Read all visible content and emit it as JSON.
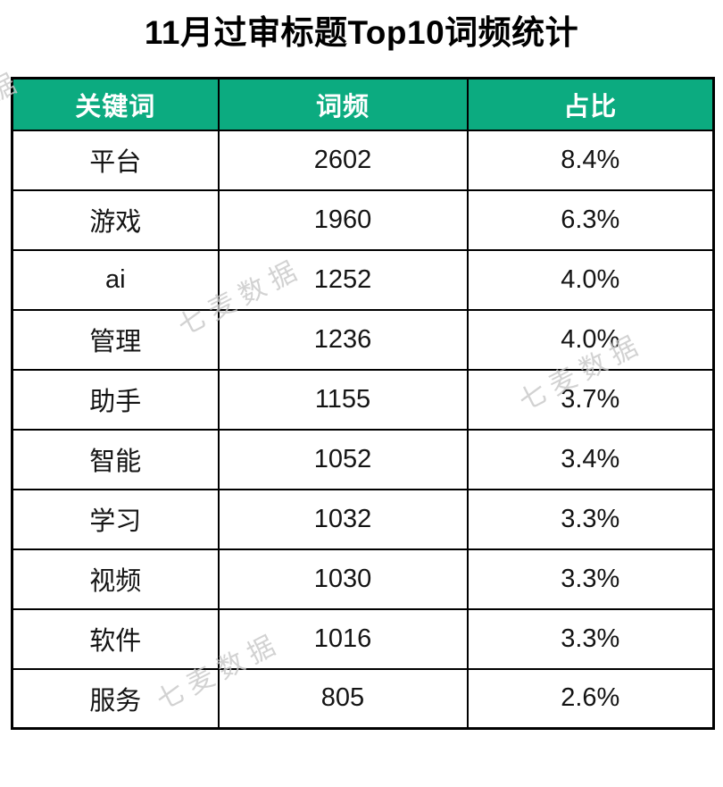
{
  "page_title": "11月过审标题Top10词频统计",
  "watermark": {
    "text": "七麦数据",
    "color": "#c8c8c8"
  },
  "colors": {
    "header_bg": "#0cab80",
    "header_text": "#ffffff",
    "border": "#000000",
    "cell_text": "#141414"
  },
  "chart_data": {
    "type": "table",
    "title": "11月过审标题Top10词频统计",
    "columns": [
      "关键词",
      "词频",
      "占比"
    ],
    "rows": [
      [
        "平台",
        2602,
        "8.4%"
      ],
      [
        "游戏",
        1960,
        "6.3%"
      ],
      [
        "ai",
        1252,
        "4.0%"
      ],
      [
        "管理",
        1236,
        "4.0%"
      ],
      [
        "助手",
        1155,
        "3.7%"
      ],
      [
        "智能",
        1052,
        "3.4%"
      ],
      [
        "学习",
        1032,
        "3.3%"
      ],
      [
        "视频",
        1030,
        "3.3%"
      ],
      [
        "软件",
        1016,
        "3.3%"
      ],
      [
        "服务",
        805,
        "2.6%"
      ]
    ],
    "layout_hints": {
      "header_style": "green background, white bold text",
      "grid": "black borders on all cells",
      "watermark_positions": "diagonal repeated brand watermarks over table"
    }
  }
}
